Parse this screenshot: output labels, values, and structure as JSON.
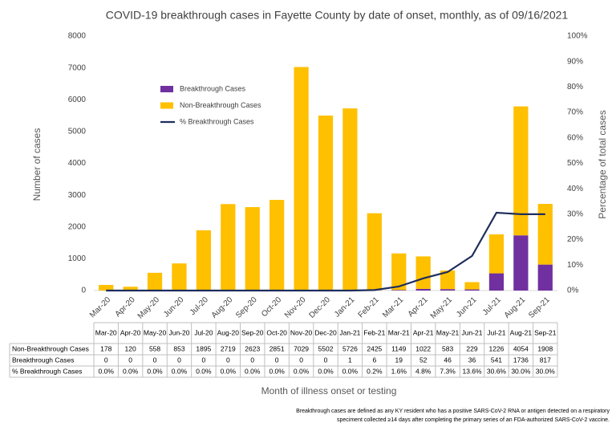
{
  "chart_data": {
    "type": "bar",
    "stacked": true,
    "title": "COVID-19 breakthrough cases in Fayette County by date of onset, monthly, as of 09/16/2021",
    "y_label": "Number of cases",
    "y2_label": "Percentage of total cases",
    "x_label": "Month of illness onset or testing",
    "notes": [
      "Breakthrough cases are defined as any KY resident who has a positive SARS-CoV-2 RNA or antigen detected on a respiratory",
      "speciment collected ≥14 days after completing the primary series of an FDA-authorized SARS-CoV-2 vaccine."
    ],
    "categories": [
      "Mar-20",
      "Apr-20",
      "May-20",
      "Jun-20",
      "Jul-20",
      "Aug-20",
      "Sep-20",
      "Oct-20",
      "Nov-20",
      "Dec-20",
      "Jan-21",
      "Feb-21",
      "Mar-21",
      "Apr-21",
      "May-21",
      "Jun-21",
      "Jul-21",
      "Aug-21",
      "Sep-21"
    ],
    "series": [
      {
        "name": "Breakthrough Cases",
        "color": "#7030a0",
        "values": [
          0,
          0,
          0,
          0,
          0,
          0,
          0,
          0,
          0,
          0,
          1,
          6,
          19,
          52,
          46,
          36,
          541,
          1736,
          817
        ]
      },
      {
        "name": "Non-Breakthrough Cases",
        "color": "#ffc000",
        "values": [
          178,
          120,
          558,
          853,
          1895,
          2719,
          2623,
          2851,
          7029,
          5502,
          5726,
          2425,
          1149,
          1022,
          583,
          229,
          1226,
          4054,
          1908
        ]
      },
      {
        "name": "% Breakthrough Cases",
        "color": "#1f2d5c",
        "type": "line",
        "axis": "y2",
        "values": [
          0,
          0,
          0,
          0,
          0,
          0,
          0,
          0,
          0,
          0,
          0,
          0.2,
          1.6,
          4.8,
          7.3,
          13.6,
          30.6,
          30.0,
          30.0
        ],
        "value_labels": [
          "0.0%",
          "0.0%",
          "0.0%",
          "0.0%",
          "0.0%",
          "0.0%",
          "0.0%",
          "0.0%",
          "0.0%",
          "0.0%",
          "0.0%",
          "0.2%",
          "1.6%",
          "4.8%",
          "7.3%",
          "13.6%",
          "30.6%",
          "30.0%",
          "30.0%"
        ]
      }
    ],
    "ylim": [
      0,
      8000
    ],
    "yticks": [
      0,
      1000,
      2000,
      3000,
      4000,
      5000,
      6000,
      7000,
      8000
    ],
    "y2lim": [
      0,
      100
    ],
    "y2ticks": [
      {
        "value": 0,
        "label": "0%"
      },
      {
        "value": 10,
        "label": "10%"
      },
      {
        "value": 20,
        "label": "20%"
      },
      {
        "value": 30,
        "label": "30%"
      },
      {
        "value": 40,
        "label": "40%"
      },
      {
        "value": 50,
        "label": "50%"
      },
      {
        "value": 60,
        "label": "60%"
      },
      {
        "value": 70,
        "label": "70%"
      },
      {
        "value": 80,
        "label": "80%"
      },
      {
        "value": 90,
        "label": "90%"
      },
      {
        "value": 100,
        "label": "100%"
      }
    ],
    "grid": false
  }
}
